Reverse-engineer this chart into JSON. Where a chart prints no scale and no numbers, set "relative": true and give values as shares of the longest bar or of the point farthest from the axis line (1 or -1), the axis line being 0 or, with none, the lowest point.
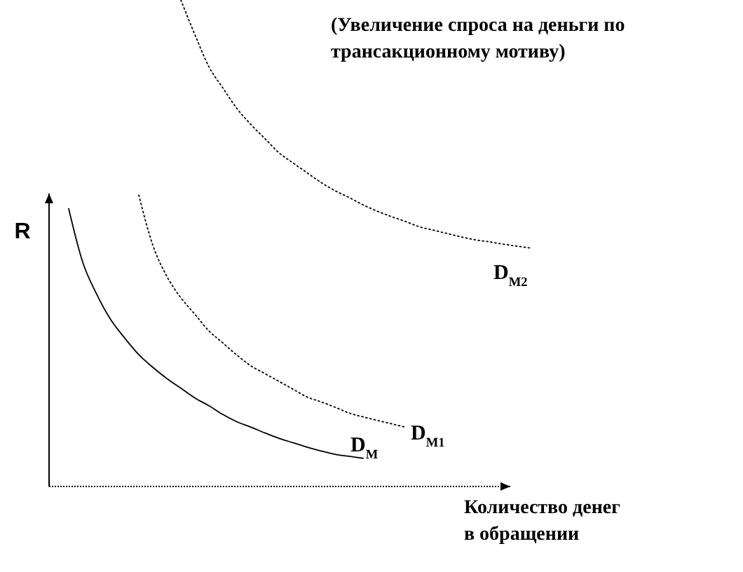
{
  "chart_data": {
    "type": "line",
    "relative": true,
    "ylabel": "R",
    "xlabel": "Количество денег\nв обращении",
    "annotations": [
      "(Увеличение спроса на деньги по\nтрансакционному мотиву)"
    ],
    "categories": [
      null,
      null,
      null,
      null,
      null,
      null,
      null,
      null,
      null,
      null,
      null,
      null,
      null,
      null,
      null,
      null,
      null,
      null,
      null,
      null,
      null,
      null,
      null,
      null,
      null,
      null,
      null,
      null,
      null,
      null,
      null,
      null,
      null,
      null
    ],
    "series": [
      {
        "name": "D$_{M}$",
        "color": "#000000",
        "line_style": "solid",
        "values": [
          0.571,
          0.461,
          0.395,
          0.343,
          0.305,
          0.271,
          0.245,
          0.222,
          0.202,
          0.182,
          0.166,
          0.148,
          0.133,
          0.122,
          0.11,
          0.099,
          0.09,
          0.081,
          0.073,
          0.066,
          0.062,
          0.058,
          null,
          null,
          null,
          null,
          null,
          null,
          null,
          null,
          null,
          null,
          null,
          null
        ]
      },
      {
        "name": "D$_{M1}$",
        "color": "#000000",
        "line_style": "dotted",
        "values": [
          null,
          null,
          null,
          null,
          null,
          0.599,
          0.496,
          0.432,
          0.388,
          0.354,
          0.32,
          0.295,
          0.27,
          0.248,
          0.232,
          0.216,
          0.2,
          0.184,
          0.174,
          0.163,
          0.151,
          0.143,
          0.136,
          0.129,
          0.122,
          null,
          null,
          null,
          null,
          null,
          null,
          null,
          null,
          null
        ]
      },
      {
        "name": "D$_{M2}$",
        "color": "#000000",
        "line_style": "dotted",
        "values": [
          null,
          null,
          null,
          null,
          null,
          null,
          null,
          null,
          1.0,
          0.929,
          0.863,
          0.819,
          0.777,
          0.744,
          0.715,
          0.686,
          0.665,
          0.645,
          0.625,
          0.608,
          0.594,
          0.579,
          0.566,
          0.555,
          0.545,
          0.534,
          0.527,
          0.52,
          0.513,
          0.507,
          0.503,
          0.498,
          0.494,
          0.49
        ]
      }
    ]
  }
}
